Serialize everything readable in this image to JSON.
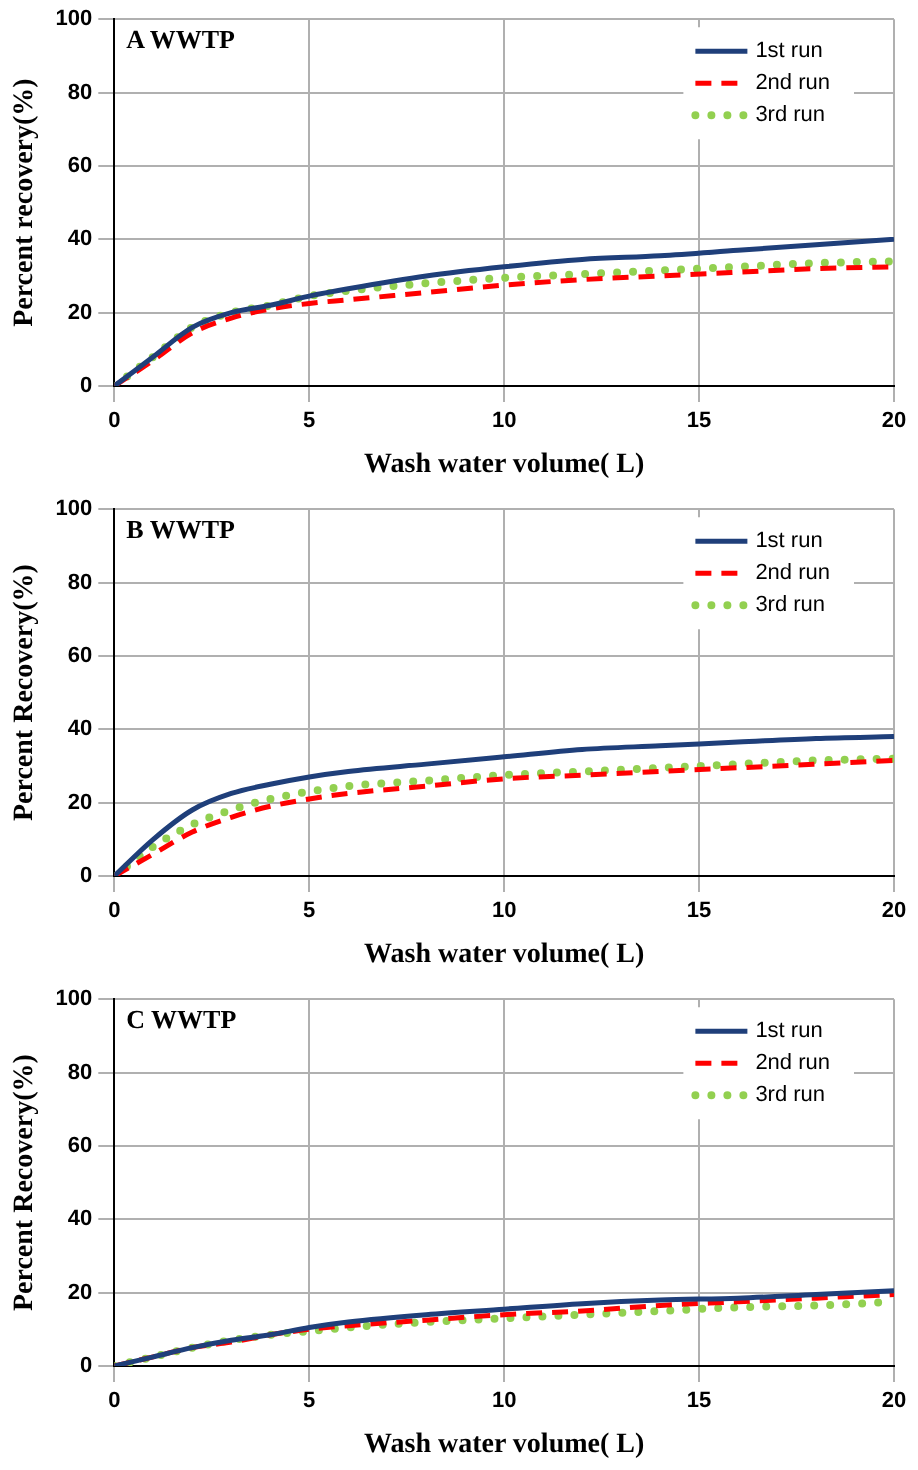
{
  "chart_data": [
    {
      "type": "line",
      "title": "A WWTP",
      "xlabel": "Wash water volume( L)",
      "ylabel": "Percent recovery(%)",
      "xlim": [
        0,
        20
      ],
      "xticks": [
        0,
        5,
        10,
        15,
        20
      ],
      "ylim": [
        0,
        100
      ],
      "yticks": [
        0,
        20,
        40,
        60,
        80,
        100
      ],
      "grid": true,
      "legend": "top right",
      "marker": "none",
      "x": [
        0,
        1,
        2,
        3,
        4,
        5,
        6,
        8,
        10,
        12,
        14,
        16,
        18,
        20
      ],
      "series": [
        {
          "name": "1st run",
          "color": "#1f3f7a",
          "line_style": "solid",
          "values": [
            0,
            8,
            16,
            20,
            22,
            24.5,
            26.5,
            30,
            32.5,
            34.5,
            35.5,
            37,
            38.5,
            40
          ]
        },
        {
          "name": "2nd run",
          "color": "#ff0000",
          "line_style": "dashed",
          "values": [
            0,
            7,
            14.5,
            18.5,
            21,
            22.5,
            23.5,
            25.5,
            27.5,
            29,
            30,
            31,
            32,
            32.5
          ]
        },
        {
          "name": "3rd run",
          "color": "#92d050",
          "line_style": "dotted",
          "values": [
            0,
            8,
            16,
            20,
            22,
            24.5,
            26,
            28,
            29.5,
            30.5,
            31.5,
            32.5,
            33.5,
            34
          ]
        }
      ]
    },
    {
      "type": "line",
      "title": "B WWTP",
      "xlabel": "Wash water volume( L)",
      "ylabel": "Percent Recovery(%)",
      "xlim": [
        0,
        20
      ],
      "xticks": [
        0,
        5,
        10,
        15,
        20
      ],
      "ylim": [
        0,
        100
      ],
      "yticks": [
        0,
        20,
        40,
        60,
        80,
        100
      ],
      "grid": true,
      "legend": "top right",
      "marker": "none",
      "x": [
        0,
        1,
        2,
        3,
        4,
        5,
        6,
        8,
        10,
        12,
        14,
        16,
        18,
        20
      ],
      "series": [
        {
          "name": "1st run",
          "color": "#1f3f7a",
          "line_style": "solid",
          "values": [
            0,
            10,
            18,
            22.5,
            25,
            27,
            28.5,
            30.5,
            32.5,
            34.5,
            35.5,
            36.5,
            37.5,
            38
          ]
        },
        {
          "name": "2nd run",
          "color": "#ff0000",
          "line_style": "dashed",
          "values": [
            0,
            6,
            12,
            16,
            19,
            21,
            22.5,
            24.5,
            26.5,
            27.5,
            28.5,
            29.5,
            30.5,
            31.5
          ]
        },
        {
          "name": "3rd run",
          "color": "#92d050",
          "line_style": "dotted",
          "values": [
            0,
            8,
            14,
            18,
            21,
            23,
            24.5,
            26,
            27.5,
            28.5,
            29.5,
            30.5,
            31.5,
            32
          ]
        }
      ]
    },
    {
      "type": "line",
      "title": "C WWTP",
      "xlabel": "Wash water volume( L)",
      "ylabel": "Percent Recovery(%)",
      "xlim": [
        0,
        20
      ],
      "xticks": [
        0,
        5,
        10,
        15,
        20
      ],
      "ylim": [
        0,
        100
      ],
      "yticks": [
        0,
        20,
        40,
        60,
        80,
        100
      ],
      "grid": true,
      "legend": "top right",
      "marker": "none",
      "x": [
        0,
        1,
        2,
        3,
        4,
        5,
        6,
        8,
        10,
        12,
        14,
        16,
        18,
        20
      ],
      "series": [
        {
          "name": "1st run",
          "color": "#1f3f7a",
          "line_style": "solid",
          "values": [
            0,
            2.5,
            5,
            7,
            8.5,
            10.5,
            12,
            14,
            15.5,
            17,
            18,
            18.5,
            19.5,
            20.5
          ]
        },
        {
          "name": "2nd run",
          "color": "#ff0000",
          "line_style": "dashed",
          "values": [
            0,
            2.5,
            5,
            6.5,
            8.5,
            10,
            11,
            12.5,
            14,
            15,
            16.5,
            17.5,
            18.5,
            19.5
          ]
        },
        {
          "name": "3rd run",
          "color": "#92d050",
          "line_style": "dotted",
          "values": [
            0,
            2.5,
            5,
            7,
            8.5,
            9.5,
            10.5,
            12,
            13,
            14,
            15,
            16,
            16.5,
            17.5
          ]
        }
      ]
    }
  ]
}
